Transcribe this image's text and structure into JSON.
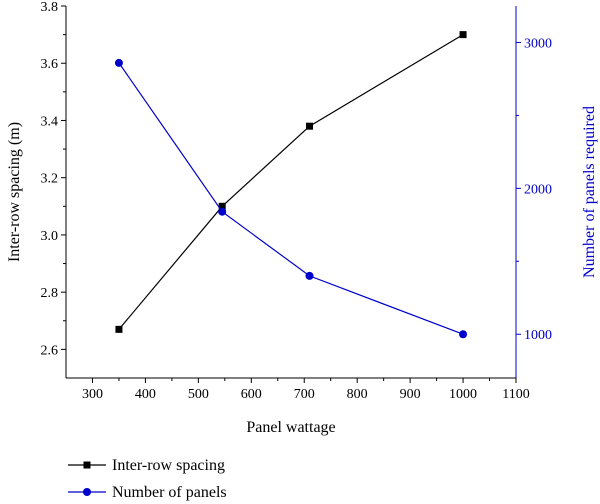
{
  "chart_data": {
    "type": "line",
    "xlabel": "Panel wattage",
    "ylabel_left": "Inter-row spacing (m)",
    "ylabel_right": "Number of panels required",
    "xlim": [
      250,
      1100
    ],
    "ylim_left": [
      2.5,
      3.8
    ],
    "ylim_right": [
      700,
      3250
    ],
    "x_ticks": [
      "300",
      "400",
      "500",
      "600",
      "700",
      "800",
      "900",
      "1000",
      "1100"
    ],
    "y_left_ticks": [
      "2.6",
      "2.8",
      "3.0",
      "3.2",
      "3.4",
      "3.6",
      "3.8"
    ],
    "y_right_ticks": [
      "1000",
      "2000",
      "3000"
    ],
    "legend_position": "bottom-left",
    "series": [
      {
        "name": "Inter-row spacing",
        "axis": "left",
        "color": "#000000",
        "marker": "square",
        "x": [
          350,
          545,
          710,
          1000
        ],
        "values": [
          2.67,
          3.1,
          3.38,
          3.7
        ]
      },
      {
        "name": "Number of panels",
        "axis": "right",
        "color": "#0000cc",
        "marker": "circle",
        "x": [
          350,
          545,
          710,
          1000
        ],
        "values": [
          2860,
          1840,
          1400,
          1000
        ]
      }
    ]
  }
}
